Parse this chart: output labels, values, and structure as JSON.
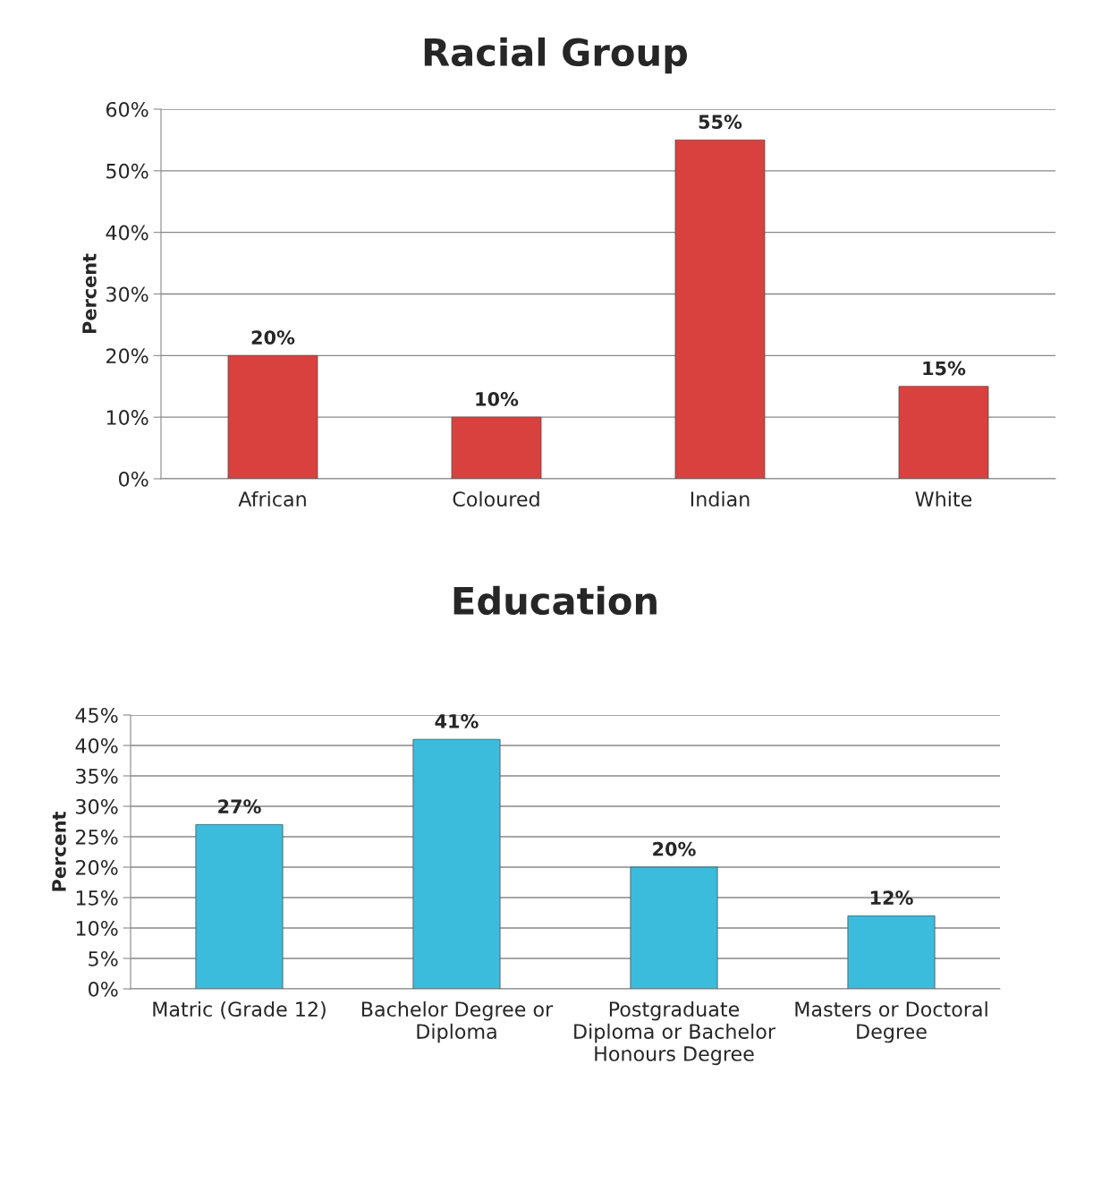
{
  "chart_data": [
    {
      "type": "bar",
      "title": "Racial Group",
      "ylabel": "Percent",
      "categories": [
        "African",
        "Coloured",
        "Indian",
        "White"
      ],
      "values": [
        20,
        10,
        55,
        15
      ],
      "color": "#d9413e",
      "value_labels": [
        "20%",
        "10%",
        "55%",
        "15%"
      ],
      "ylim": [
        0,
        60
      ],
      "yticks": [
        {
          "value": 0,
          "label": "0%"
        },
        {
          "value": 10,
          "label": "10%"
        },
        {
          "value": 20,
          "label": "20%"
        },
        {
          "value": 30,
          "label": "30%"
        },
        {
          "value": 40,
          "label": "40%"
        },
        {
          "value": 50,
          "label": "50%"
        },
        {
          "value": 60,
          "label": "60%"
        }
      ],
      "grid": "y",
      "legend": false
    },
    {
      "type": "bar",
      "title": "Education",
      "ylabel": "Percent",
      "categories": [
        "Matric (Grade 12)",
        "Bachelor Degree or\nDiploma",
        "Postgraduate\nDiploma or Bachelor\nHonours Degree",
        "Masters or Doctoral\nDegree"
      ],
      "values": [
        27,
        41,
        20,
        12
      ],
      "color": "#3bbcdc",
      "value_labels": [
        "27%",
        "41%",
        "20%",
        "12%"
      ],
      "ylim": [
        0,
        45
      ],
      "yticks": [
        {
          "value": 0,
          "label": "0%"
        },
        {
          "value": 5,
          "label": "5%"
        },
        {
          "value": 10,
          "label": "10%"
        },
        {
          "value": 15,
          "label": "15%"
        },
        {
          "value": 20,
          "label": "20%"
        },
        {
          "value": 25,
          "label": "25%"
        },
        {
          "value": 30,
          "label": "30%"
        },
        {
          "value": 35,
          "label": "35%"
        },
        {
          "value": 40,
          "label": "40%"
        },
        {
          "value": 45,
          "label": "45%"
        }
      ],
      "grid": "y",
      "legend": false
    }
  ]
}
